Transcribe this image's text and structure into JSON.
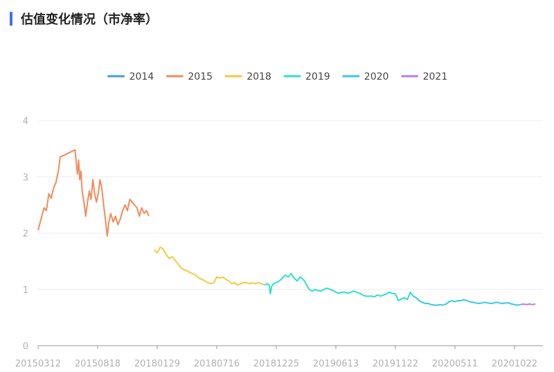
{
  "header": {
    "title": "估值变化情况（市净率）",
    "accent_color": "#3b6ff5"
  },
  "chart_data": {
    "type": "line",
    "title": "估值变化情况（市净率）",
    "xlabel": "",
    "ylabel": "",
    "ylim": [
      0,
      4
    ],
    "y_ticks": [
      "0",
      "1",
      "2",
      "3",
      "4"
    ],
    "x_ticks": [
      "20150312",
      "20150818",
      "20180129",
      "20180716",
      "20181225",
      "20190613",
      "20191122",
      "20200511",
      "20201022"
    ],
    "grid": "horizontal",
    "legend_position": "top-center",
    "series": [
      {
        "name": "2014",
        "color": "#3a9fe0",
        "points": []
      },
      {
        "name": "2015",
        "color": "#f08c5a",
        "points": [
          [
            0.0,
            2.05
          ],
          [
            0.05,
            2.25
          ],
          [
            0.1,
            2.45
          ],
          [
            0.14,
            2.4
          ],
          [
            0.18,
            2.7
          ],
          [
            0.22,
            2.62
          ],
          [
            0.26,
            2.8
          ],
          [
            0.3,
            2.9
          ],
          [
            0.34,
            3.1
          ],
          [
            0.37,
            3.35
          ],
          [
            0.62,
            3.48
          ],
          [
            0.66,
            3.05
          ],
          [
            0.68,
            3.3
          ],
          [
            0.7,
            2.95
          ],
          [
            0.72,
            3.1
          ],
          [
            0.74,
            2.75
          ],
          [
            0.77,
            2.55
          ],
          [
            0.8,
            2.3
          ],
          [
            0.83,
            2.55
          ],
          [
            0.86,
            2.75
          ],
          [
            0.89,
            2.6
          ],
          [
            0.92,
            2.95
          ],
          [
            0.95,
            2.7
          ],
          [
            0.98,
            2.55
          ],
          [
            1.01,
            2.7
          ],
          [
            1.04,
            2.95
          ],
          [
            1.07,
            2.8
          ],
          [
            1.1,
            2.5
          ],
          [
            1.13,
            2.25
          ],
          [
            1.16,
            1.95
          ],
          [
            1.19,
            2.2
          ],
          [
            1.22,
            2.35
          ],
          [
            1.26,
            2.2
          ],
          [
            1.3,
            2.3
          ],
          [
            1.34,
            2.15
          ],
          [
            1.38,
            2.25
          ],
          [
            1.42,
            2.4
          ],
          [
            1.46,
            2.5
          ],
          [
            1.5,
            2.4
          ],
          [
            1.54,
            2.6
          ],
          [
            1.58,
            2.55
          ],
          [
            1.62,
            2.5
          ],
          [
            1.66,
            2.45
          ],
          [
            1.7,
            2.3
          ],
          [
            1.74,
            2.45
          ],
          [
            1.78,
            2.35
          ],
          [
            1.82,
            2.4
          ],
          [
            1.86,
            2.3
          ]
        ]
      },
      {
        "name": "2018",
        "color": "#f5c842",
        "points": [
          [
            1.95,
            1.7
          ],
          [
            2.0,
            1.65
          ],
          [
            2.05,
            1.75
          ],
          [
            2.1,
            1.72
          ],
          [
            2.15,
            1.62
          ],
          [
            2.2,
            1.55
          ],
          [
            2.25,
            1.58
          ],
          [
            2.3,
            1.52
          ],
          [
            2.35,
            1.45
          ],
          [
            2.4,
            1.38
          ],
          [
            2.45,
            1.35
          ],
          [
            2.5,
            1.33
          ],
          [
            2.55,
            1.3
          ],
          [
            2.6,
            1.28
          ],
          [
            2.65,
            1.25
          ],
          [
            2.7,
            1.2
          ],
          [
            2.75,
            1.18
          ],
          [
            2.8,
            1.15
          ],
          [
            2.85,
            1.12
          ],
          [
            2.9,
            1.1
          ],
          [
            2.95,
            1.12
          ],
          [
            3.0,
            1.22
          ],
          [
            3.05,
            1.2
          ],
          [
            3.1,
            1.22
          ],
          [
            3.15,
            1.18
          ],
          [
            3.2,
            1.15
          ],
          [
            3.25,
            1.1
          ],
          [
            3.3,
            1.12
          ],
          [
            3.35,
            1.08
          ],
          [
            3.4,
            1.1
          ],
          [
            3.45,
            1.12
          ],
          [
            3.5,
            1.12
          ],
          [
            3.55,
            1.1
          ],
          [
            3.6,
            1.12
          ],
          [
            3.65,
            1.1
          ],
          [
            3.7,
            1.12
          ],
          [
            3.75,
            1.1
          ],
          [
            3.8,
            1.08
          ]
        ]
      },
      {
        "name": "2019",
        "color": "#2ee0c8",
        "points": [
          [
            3.8,
            1.08
          ],
          [
            3.85,
            1.1
          ],
          [
            3.88,
            1.08
          ],
          [
            3.9,
            0.92
          ],
          [
            3.92,
            1.05
          ],
          [
            3.95,
            1.1
          ],
          [
            4.0,
            1.12
          ],
          [
            4.05,
            1.15
          ],
          [
            4.1,
            1.2
          ],
          [
            4.15,
            1.25
          ],
          [
            4.2,
            1.22
          ],
          [
            4.25,
            1.28
          ],
          [
            4.3,
            1.2
          ],
          [
            4.35,
            1.15
          ],
          [
            4.4,
            1.22
          ],
          [
            4.45,
            1.18
          ],
          [
            4.5,
            1.1
          ],
          [
            4.55,
            1.0
          ],
          [
            4.6,
            0.97
          ],
          [
            4.65,
            1.0
          ],
          [
            4.7,
            0.98
          ],
          [
            4.75,
            0.97
          ],
          [
            4.8,
            1.0
          ],
          [
            4.85,
            1.02
          ],
          [
            4.9,
            1.0
          ],
          [
            4.95,
            0.98
          ],
          [
            5.0,
            0.95
          ],
          [
            5.05,
            0.93
          ],
          [
            5.1,
            0.95
          ],
          [
            5.15,
            0.95
          ],
          [
            5.2,
            0.93
          ],
          [
            5.25,
            0.95
          ],
          [
            5.3,
            0.97
          ],
          [
            5.35,
            0.95
          ],
          [
            5.4,
            0.93
          ],
          [
            5.45,
            0.9
          ],
          [
            5.5,
            0.88
          ],
          [
            5.55,
            0.88
          ],
          [
            5.6,
            0.88
          ],
          [
            5.65,
            0.87
          ],
          [
            5.7,
            0.9
          ],
          [
            5.75,
            0.88
          ],
          [
            5.8,
            0.9
          ],
          [
            5.85,
            0.92
          ],
          [
            5.9,
            0.95
          ],
          [
            5.95,
            0.93
          ],
          [
            6.0,
            0.92
          ],
          [
            6.05,
            0.8
          ],
          [
            6.1,
            0.83
          ],
          [
            6.15,
            0.85
          ],
          [
            6.2,
            0.82
          ],
          [
            6.25,
            0.95
          ],
          [
            6.3,
            0.88
          ]
        ]
      },
      {
        "name": "2020",
        "color": "#36c8ea",
        "points": [
          [
            6.3,
            0.88
          ],
          [
            6.35,
            0.85
          ],
          [
            6.4,
            0.8
          ],
          [
            6.45,
            0.77
          ],
          [
            6.5,
            0.75
          ],
          [
            6.55,
            0.75
          ],
          [
            6.6,
            0.73
          ],
          [
            6.65,
            0.72
          ],
          [
            6.7,
            0.72
          ],
          [
            6.75,
            0.73
          ],
          [
            6.8,
            0.72
          ],
          [
            6.85,
            0.74
          ],
          [
            6.9,
            0.78
          ],
          [
            6.95,
            0.8
          ],
          [
            7.0,
            0.78
          ],
          [
            7.05,
            0.8
          ],
          [
            7.1,
            0.8
          ],
          [
            7.15,
            0.82
          ],
          [
            7.2,
            0.8
          ],
          [
            7.25,
            0.78
          ],
          [
            7.3,
            0.77
          ],
          [
            7.35,
            0.76
          ],
          [
            7.4,
            0.75
          ],
          [
            7.45,
            0.76
          ],
          [
            7.5,
            0.77
          ],
          [
            7.55,
            0.76
          ],
          [
            7.6,
            0.75
          ],
          [
            7.65,
            0.76
          ],
          [
            7.7,
            0.77
          ],
          [
            7.75,
            0.76
          ],
          [
            7.8,
            0.75
          ],
          [
            7.85,
            0.76
          ],
          [
            7.9,
            0.76
          ],
          [
            7.95,
            0.74
          ],
          [
            8.0,
            0.73
          ],
          [
            8.05,
            0.72
          ],
          [
            8.1,
            0.73
          ]
        ]
      },
      {
        "name": "2021",
        "color": "#b87ce6",
        "points": [
          [
            8.1,
            0.73
          ],
          [
            8.15,
            0.74
          ],
          [
            8.2,
            0.73
          ],
          [
            8.25,
            0.74
          ],
          [
            8.3,
            0.73
          ],
          [
            8.35,
            0.74
          ]
        ]
      }
    ]
  }
}
